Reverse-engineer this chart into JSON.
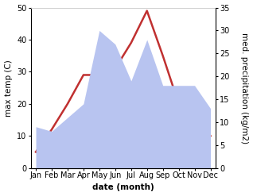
{
  "months": [
    "Jan",
    "Feb",
    "Mar",
    "Apr",
    "May",
    "Jun",
    "Jul",
    "Aug",
    "Sep",
    "Oct",
    "Nov",
    "Dec"
  ],
  "temperature": [
    5,
    12,
    20,
    29,
    29,
    31,
    39,
    49,
    35,
    20,
    18,
    10
  ],
  "precipitation": [
    9,
    8,
    11,
    14,
    30,
    27,
    19,
    28,
    18,
    18,
    18,
    13
  ],
  "temp_color": "#c03030",
  "precip_color": "#b8c4f0",
  "bg_color": "#ffffff",
  "ylabel_left": "max temp (C)",
  "ylabel_right": "med. precipitation (kg/m2)",
  "xlabel": "date (month)",
  "ylim_left": [
    0,
    50
  ],
  "ylim_right": [
    0,
    35
  ],
  "yticks_left": [
    0,
    10,
    20,
    30,
    40,
    50
  ],
  "yticks_right": [
    0,
    5,
    10,
    15,
    20,
    25,
    30,
    35
  ],
  "label_fontsize": 7.5,
  "tick_fontsize": 7
}
